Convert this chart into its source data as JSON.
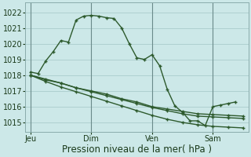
{
  "background_color": "#cce8e8",
  "grid_color": "#aacccc",
  "line_color": "#2d5a2d",
  "marker_color": "#2d5a2d",
  "x_ticks_labels": [
    "Jeu",
    "Dim",
    "Ven",
    "Sam"
  ],
  "x_ticks_pos": [
    0,
    48,
    96,
    144
  ],
  "ylabel": "Pression niveau de la mer( hPa )",
  "ylim": [
    1014.4,
    1022.6
  ],
  "yticks": [
    1015,
    1016,
    1017,
    1018,
    1019,
    1020,
    1021,
    1022
  ],
  "s1_x": [
    0,
    6,
    12,
    18,
    24,
    30,
    36,
    42,
    48,
    54,
    60,
    66,
    72,
    78,
    84,
    90,
    96,
    102,
    108,
    114,
    120,
    126,
    132,
    138,
    144,
    150,
    156,
    162
  ],
  "s1_y": [
    1018.2,
    1018.1,
    1018.9,
    1019.5,
    1020.2,
    1020.1,
    1021.5,
    1021.75,
    1021.8,
    1021.75,
    1021.65,
    1021.6,
    1021.0,
    1020.0,
    1019.1,
    1019.0,
    1019.3,
    1018.6,
    1017.1,
    1016.05,
    1015.65,
    1015.1,
    1015.1,
    1014.8,
    1016.0,
    1016.1,
    1016.2,
    1016.3
  ],
  "s2_x": [
    0,
    12,
    24,
    36,
    48,
    60,
    72,
    84,
    96,
    108,
    120,
    132,
    144,
    156,
    168
  ],
  "s2_y": [
    1018.0,
    1017.7,
    1017.5,
    1017.2,
    1017.0,
    1016.8,
    1016.5,
    1016.3,
    1016.0,
    1015.85,
    1015.7,
    1015.55,
    1015.5,
    1015.45,
    1015.4
  ],
  "s3_x": [
    0,
    12,
    24,
    36,
    48,
    60,
    72,
    84,
    96,
    108,
    120,
    132,
    144,
    156,
    168
  ],
  "s3_y": [
    1018.0,
    1017.75,
    1017.5,
    1017.2,
    1016.95,
    1016.7,
    1016.45,
    1016.2,
    1015.95,
    1015.75,
    1015.55,
    1015.4,
    1015.35,
    1015.3,
    1015.25
  ],
  "s4_x": [
    0,
    12,
    24,
    36,
    48,
    60,
    72,
    84,
    96,
    108,
    120,
    132,
    144,
    156,
    168
  ],
  "s4_y": [
    1018.0,
    1017.6,
    1017.25,
    1016.95,
    1016.65,
    1016.35,
    1016.05,
    1015.75,
    1015.45,
    1015.2,
    1015.0,
    1014.85,
    1014.75,
    1014.7,
    1014.65
  ],
  "xlim": [
    -4,
    172
  ],
  "figsize": [
    3.2,
    2.0
  ],
  "dpi": 100,
  "fontsize_ylabel": 8.5,
  "fontsize_ticks": 7.0
}
